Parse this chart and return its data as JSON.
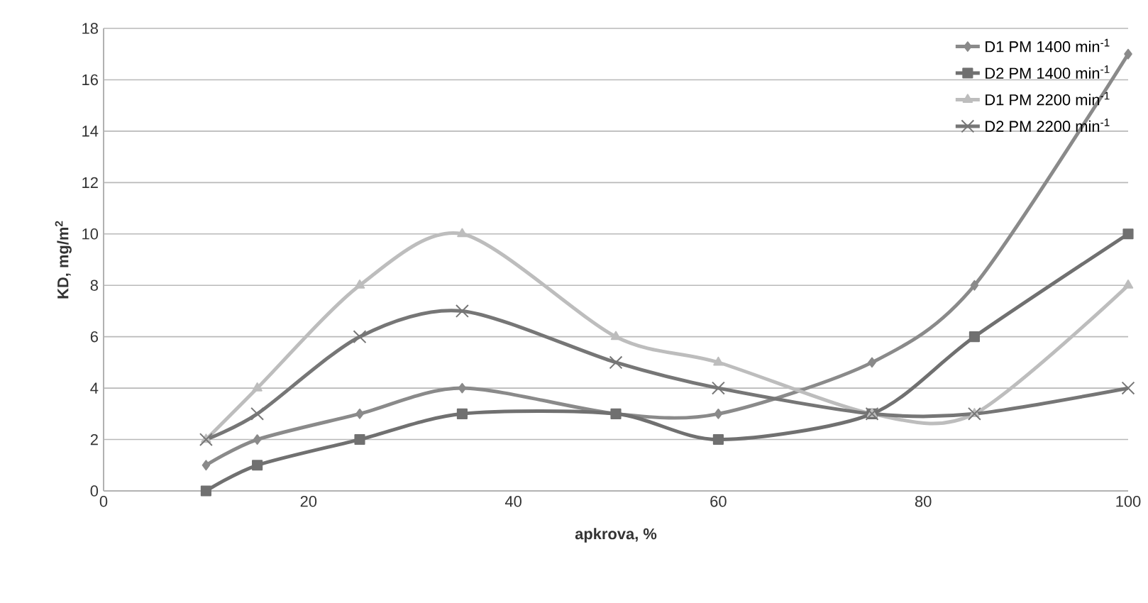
{
  "chart_data": {
    "type": "line",
    "xlabel": "apkrova, %",
    "ylabel": "KD, mg/m$^{2}$",
    "x": [
      10,
      15,
      25,
      35,
      50,
      60,
      75,
      85,
      100
    ],
    "series": [
      {
        "name": "D1 PM 1400 min$^{-1}$",
        "color": "#8a8a8a",
        "marker": "diamond",
        "values": [
          1,
          2,
          3,
          4,
          3,
          3,
          5,
          8,
          17
        ]
      },
      {
        "name": "D2 PM 1400 min$^{-1}$",
        "color": "#707070",
        "marker": "square",
        "values": [
          0,
          1,
          2,
          3,
          3,
          2,
          3,
          6,
          10
        ]
      },
      {
        "name": "D1 PM 2200 min$^{-1}$",
        "color": "#bdbdbd",
        "marker": "triangle",
        "values": [
          2,
          4,
          8,
          10,
          6,
          5,
          3,
          3,
          8
        ]
      },
      {
        "name": "D2 PM 2200 min$^{-1}$",
        "color": "#767676",
        "marker": "cross",
        "values": [
          2,
          3,
          6,
          7,
          5,
          4,
          3,
          3,
          4
        ]
      }
    ],
    "xlim": [
      0,
      100
    ],
    "xticks": [
      0,
      20,
      40,
      60,
      80,
      100
    ],
    "ylim": [
      0,
      18
    ],
    "yticks": [
      0,
      2,
      4,
      6,
      8,
      10,
      12,
      14,
      16,
      18
    ],
    "grid": "y",
    "legend": "top right",
    "line_style": "solid"
  }
}
